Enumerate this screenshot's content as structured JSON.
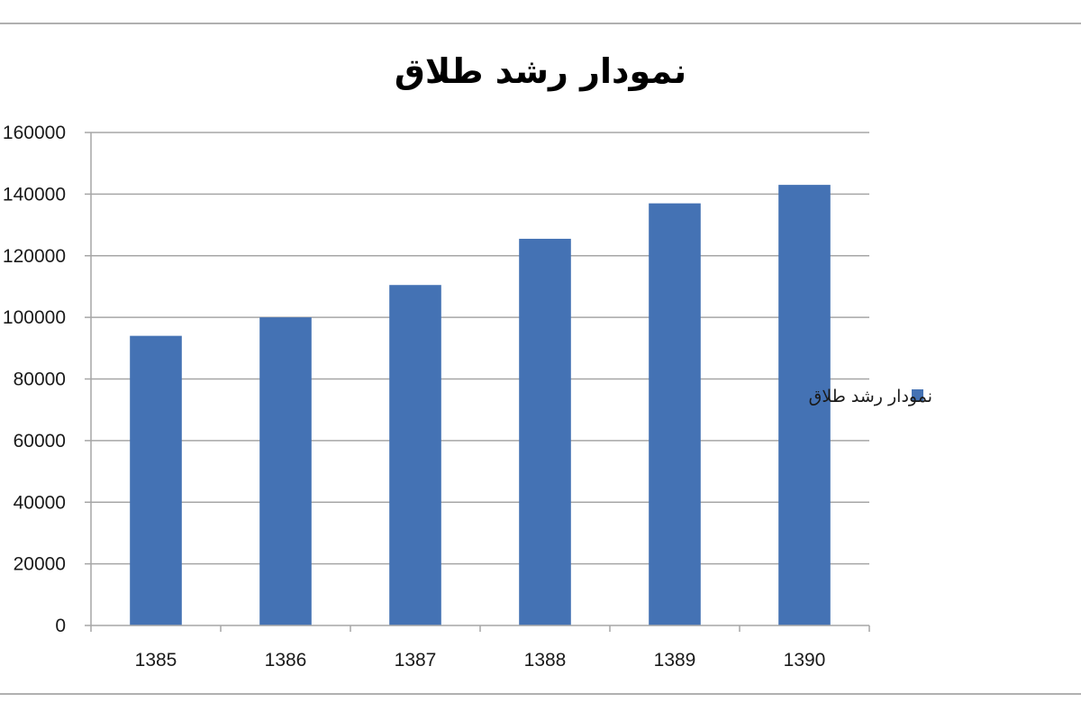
{
  "chart_data": {
    "type": "bar",
    "title": "نمودار رشد طلاق",
    "xlabel": "",
    "ylabel": "",
    "categories": [
      "1385",
      "1386",
      "1387",
      "1388",
      "1389",
      "1390"
    ],
    "series": [
      {
        "name": "نمودار رشد طلاق",
        "values": [
          94000,
          100000,
          110500,
          125500,
          137000,
          143000
        ]
      }
    ],
    "ylim": [
      0,
      160000
    ],
    "ytick_labels": [
      "0",
      "20000",
      "40000",
      "60000",
      "80000",
      "100000",
      "120000",
      "140000",
      "160000"
    ],
    "grid": true,
    "legend_position": "right",
    "colors": {
      "bar": "#4472B4",
      "grid": "#a6a6a6",
      "frame": "#b0b0b0"
    }
  }
}
